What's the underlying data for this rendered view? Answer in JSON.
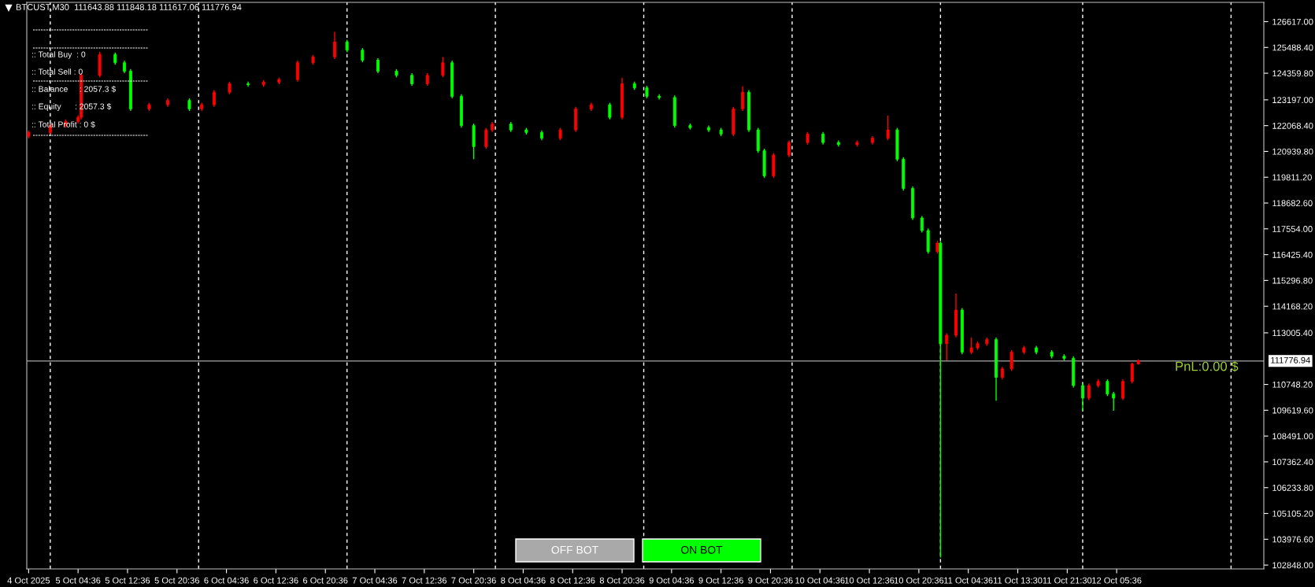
{
  "chart_data": {
    "type": "candlestick",
    "title": "BTCUST,M30  111643.88 111848.18 111617.06 111776.94",
    "categories": [
      "4 Oct 2025",
      null,
      null,
      null,
      null,
      null,
      null,
      null,
      null,
      null,
      null,
      null,
      null,
      null,
      null,
      null,
      "5 Oct 04:36",
      null,
      null,
      null,
      null,
      null,
      null,
      null,
      null,
      null,
      null,
      null,
      null,
      null,
      null,
      null,
      "5 Oct 12:36",
      null,
      null,
      null,
      null,
      null,
      null,
      null,
      null,
      null,
      null,
      null,
      null,
      null,
      null,
      null,
      "5 Oct 20:36",
      null,
      null,
      null,
      null,
      null,
      null,
      null,
      null,
      null,
      null,
      null,
      null,
      null,
      null,
      null,
      "6 Oct 04:36",
      null,
      null,
      null,
      null,
      null,
      null,
      null,
      null,
      null,
      null,
      null,
      null,
      null,
      null,
      null,
      "6 Oct 12:36",
      null,
      null,
      null,
      null,
      null,
      null,
      null,
      null,
      null,
      null,
      null,
      null,
      null,
      null,
      null,
      "6 Oct 20:36",
      null,
      null,
      null,
      null,
      null,
      null,
      null,
      null,
      null,
      null,
      null,
      null,
      null,
      null,
      null,
      "7 Oct 04:36",
      null,
      null,
      null,
      null,
      null,
      null,
      null,
      null,
      null,
      null,
      null,
      null,
      null,
      null,
      null,
      "7 Oct 12:36",
      null,
      null,
      null,
      null,
      null,
      null,
      null,
      null,
      null,
      null,
      null,
      null,
      null,
      null,
      null,
      "7 Oct 20:36",
      null,
      null,
      null,
      null,
      null,
      null,
      null,
      null,
      null,
      null,
      null,
      null,
      null,
      null,
      null,
      "8 Oct 04:36",
      null,
      null,
      null,
      null,
      null,
      null,
      null,
      null,
      null,
      null,
      null,
      null,
      null,
      null,
      null,
      "8 Oct 12:36",
      null,
      null,
      null,
      null,
      null,
      null,
      null,
      null,
      null,
      null,
      null,
      null,
      null,
      null,
      null,
      "8 Oct 20:36",
      null,
      null,
      null,
      null,
      null,
      null,
      null,
      null,
      null,
      null,
      null,
      null,
      null,
      null,
      null,
      "9 Oct 04:36",
      null,
      null,
      null,
      null,
      null,
      null,
      null,
      null,
      null,
      null,
      null,
      null,
      null,
      null,
      null,
      "9 Oct 12:36",
      null,
      null,
      null,
      null,
      null,
      null,
      null,
      null,
      null,
      null,
      null,
      null,
      null,
      null,
      null,
      "9 Oct 20:36",
      null,
      null,
      null,
      null,
      null,
      null,
      null,
      null,
      null,
      null,
      null,
      null,
      null,
      null,
      null,
      "10 Oct 04:36",
      null,
      null,
      null,
      null,
      null,
      null,
      null,
      null,
      null,
      null,
      null,
      null,
      null,
      null,
      null,
      "10 Oct 12:36",
      null,
      null,
      null,
      null,
      null,
      null,
      null,
      null,
      null,
      null,
      null,
      null,
      null,
      null,
      null,
      "10 Oct 20:36",
      null,
      null,
      null,
      null,
      null,
      null,
      null,
      null,
      null,
      null,
      null,
      null,
      null,
      null,
      null,
      "11 Oct 04:36",
      null,
      null,
      null,
      null,
      null,
      null,
      null,
      null,
      null,
      null,
      null,
      null,
      null,
      null,
      null,
      "11 Oct 13:30",
      null,
      null,
      null,
      null,
      null,
      null,
      null,
      null,
      null,
      null,
      null,
      null,
      null,
      null,
      null,
      "11 Oct 21:30",
      null,
      null,
      null,
      null,
      null,
      null,
      null,
      null,
      null,
      null,
      null,
      null,
      null,
      null,
      null,
      "12 Oct 05:36",
      null,
      null,
      null,
      null,
      null,
      null,
      null,
      null,
      null,
      null,
      null,
      null,
      null,
      null,
      null,
      null,
      null,
      null,
      null,
      null,
      null,
      null,
      null,
      null,
      null,
      null,
      null,
      null,
      null,
      null,
      null,
      null,
      null,
      null,
      null,
      null,
      null,
      null,
      null,
      null,
      null,
      null,
      null,
      null,
      null,
      null,
      null
    ],
    "ohlc": [
      [
        121600,
        121860,
        121510,
        121770
      ],
      null,
      null,
      null,
      null,
      null,
      null,
      [
        121770,
        122160,
        121680,
        122070
      ],
      null,
      null,
      null,
      null,
      [
        122070,
        122340,
        121980,
        122250
      ],
      null,
      null,
      null,
      [
        122250,
        122520,
        122160,
        122430
      ],
      [
        122430,
        124360,
        122340,
        124270
      ],
      null,
      null,
      null,
      null,
      null,
      [
        124270,
        125290,
        124180,
        125180
      ],
      null,
      null,
      null,
      null,
      [
        125180,
        125270,
        124730,
        124820
      ],
      null,
      null,
      [
        124820,
        124910,
        124360,
        124450
      ],
      null,
      [
        124450,
        124540,
        122710,
        122800
      ],
      null,
      null,
      null,
      null,
      null,
      [
        122800,
        123070,
        122710,
        122980
      ],
      null,
      null,
      null,
      null,
      null,
      [
        122980,
        123260,
        122890,
        123170
      ],
      null,
      null,
      null,
      null,
      null,
      null,
      [
        123170,
        123260,
        122710,
        122800
      ],
      null,
      null,
      null,
      [
        122800,
        123070,
        122710,
        122980
      ],
      null,
      null,
      null,
      [
        122980,
        123620,
        122890,
        123530
      ],
      null,
      null,
      null,
      null,
      [
        123530,
        123990,
        123440,
        123900
      ],
      null,
      null,
      null,
      null,
      null,
      [
        123900,
        123990,
        123770,
        123860
      ],
      null,
      null,
      null,
      null,
      [
        123860,
        124060,
        123770,
        123970
      ],
      null,
      null,
      null,
      null,
      [
        123970,
        124170,
        123880,
        124080
      ],
      null,
      null,
      null,
      null,
      null,
      [
        124080,
        124910,
        123990,
        124820
      ],
      null,
      null,
      null,
      null,
      [
        124820,
        125160,
        124730,
        125070
      ],
      null,
      null,
      null,
      null,
      null,
      null,
      [
        125070,
        126170,
        124980,
        125730
      ],
      null,
      null,
      null,
      [
        125730,
        125820,
        125280,
        125370
      ],
      null,
      null,
      null,
      null,
      [
        125370,
        125460,
        124840,
        124930
      ],
      null,
      null,
      null,
      null,
      [
        124930,
        125020,
        124360,
        124450
      ],
      null,
      null,
      null,
      null,
      null,
      [
        124450,
        124540,
        124180,
        124270
      ],
      null,
      null,
      null,
      null,
      [
        124270,
        124360,
        123810,
        123900
      ],
      null,
      null,
      null,
      null,
      [
        123900,
        124360,
        123810,
        124270
      ],
      null,
      null,
      null,
      null,
      [
        124270,
        125070,
        124180,
        124820
      ],
      null,
      null,
      [
        124820,
        124910,
        123260,
        123350
      ],
      null,
      null,
      [
        123350,
        123440,
        121980,
        122070
      ],
      null,
      null,
      null,
      [
        122070,
        122160,
        120600,
        121150
      ],
      null,
      null,
      null,
      [
        121150,
        121970,
        121060,
        121880
      ],
      null,
      [
        121880,
        122230,
        121790,
        122140
      ],
      null,
      null,
      null,
      null,
      null,
      [
        122140,
        122230,
        121790,
        121880
      ],
      null,
      null,
      null,
      null,
      [
        121880,
        121970,
        121680,
        121770
      ],
      null,
      null,
      null,
      null,
      [
        121770,
        121860,
        121430,
        121520
      ],
      null,
      null,
      null,
      null,
      null,
      [
        121520,
        121970,
        121430,
        121880
      ],
      null,
      null,
      null,
      null,
      [
        121880,
        122890,
        121790,
        122800
      ],
      null,
      null,
      null,
      null,
      [
        122800,
        123070,
        122710,
        122980
      ],
      null,
      null,
      null,
      null,
      null,
      [
        122980,
        123070,
        122340,
        122430
      ],
      null,
      null,
      null,
      [
        122430,
        124160,
        122340,
        123900
      ],
      null,
      null,
      null,
      [
        123900,
        123990,
        123630,
        123720
      ],
      null,
      null,
      null,
      [
        123720,
        123810,
        123260,
        123350
      ],
      null,
      null,
      null,
      [
        123350,
        123440,
        123210,
        123300
      ],
      null,
      null,
      null,
      null,
      [
        123300,
        123390,
        121980,
        122070
      ],
      null,
      null,
      null,
      null,
      [
        122070,
        122160,
        121900,
        121980
      ],
      null,
      null,
      null,
      null,
      null,
      [
        121980,
        122070,
        121790,
        121880
      ],
      null,
      null,
      null,
      [
        121880,
        121970,
        121610,
        121700
      ],
      null,
      null,
      null,
      [
        121700,
        122890,
        121610,
        122800
      ],
      null,
      null,
      [
        122800,
        123790,
        122710,
        123530
      ],
      null,
      [
        123530,
        123620,
        121790,
        121880
      ],
      null,
      null,
      [
        121880,
        121970,
        120880,
        120970
      ],
      null,
      [
        120970,
        121060,
        119780,
        119870
      ],
      null,
      null,
      [
        119870,
        120870,
        119780,
        120780
      ],
      null,
      null,
      null,
      null,
      [
        120780,
        121420,
        120690,
        121330
      ],
      null,
      null,
      null,
      null,
      null,
      [
        121330,
        121790,
        121240,
        121700
      ],
      null,
      null,
      null,
      null,
      [
        121700,
        121790,
        121240,
        121330
      ],
      null,
      null,
      null,
      null,
      [
        121330,
        121420,
        121150,
        121240
      ],
      null,
      null,
      null,
      null,
      null,
      [
        121240,
        121420,
        121150,
        121330
      ],
      null,
      null,
      null,
      null,
      [
        121330,
        121610,
        121240,
        121520
      ],
      null,
      null,
      null,
      null,
      [
        121520,
        122510,
        121430,
        121880
      ],
      null,
      null,
      [
        121880,
        121970,
        120510,
        120600
      ],
      null,
      [
        120600,
        120690,
        119230,
        119320
      ],
      null,
      null,
      [
        119320,
        119410,
        117940,
        118030
      ],
      null,
      null,
      [
        118030,
        118120,
        117390,
        117480
      ],
      null,
      [
        117480,
        117570,
        116470,
        116560
      ],
      null,
      null,
      [
        116560,
        117020,
        116470,
        116930
      ],
      [
        116930,
        117020,
        103180,
        112530
      ],
      null,
      [
        112530,
        112990,
        111800,
        112900
      ],
      null,
      null,
      [
        112900,
        114730,
        112810,
        114000
      ],
      null,
      [
        114000,
        114090,
        112070,
        112160
      ],
      null,
      null,
      [
        112160,
        112800,
        112070,
        112350
      ],
      null,
      [
        112350,
        112620,
        112260,
        112530
      ],
      null,
      null,
      [
        112530,
        112800,
        112440,
        112710
      ],
      null,
      null,
      [
        112710,
        112800,
        110040,
        111060
      ],
      null,
      [
        111060,
        111520,
        110970,
        111430
      ],
      null,
      null,
      [
        111430,
        112250,
        111340,
        112160
      ],
      null,
      null,
      null,
      [
        112160,
        112440,
        112070,
        112350
      ],
      null,
      null,
      null,
      [
        112350,
        112440,
        112070,
        112160
      ],
      null,
      null,
      null,
      null,
      [
        112160,
        112250,
        111890,
        111980
      ],
      null,
      null,
      null,
      [
        111980,
        112070,
        111800,
        111890
      ],
      null,
      null,
      [
        111890,
        111980,
        110610,
        110700
      ],
      null,
      null,
      [
        110700,
        110790,
        109600,
        110150
      ],
      null,
      [
        110150,
        110790,
        110060,
        110700
      ],
      null,
      null,
      [
        110700,
        110970,
        110610,
        110880
      ],
      null,
      null,
      [
        110880,
        110970,
        110240,
        110330
      ],
      null,
      [
        110330,
        110420,
        109600,
        110150
      ],
      null,
      null,
      [
        110150,
        110970,
        110060,
        110880
      ],
      null,
      null,
      [
        110880,
        111700,
        110790,
        111640
      ],
      null,
      [
        111643.88,
        111848.18,
        111617.06,
        111776.94
      ],
      null,
      null,
      null,
      null,
      null,
      null,
      null,
      null,
      null,
      null,
      null,
      null,
      null,
      null,
      null,
      null,
      null,
      null,
      null,
      null,
      null,
      null,
      null,
      null,
      null,
      null,
      null,
      null,
      null,
      null,
      null,
      null,
      null,
      null,
      null,
      null,
      null,
      null,
      null,
      null
    ],
    "colors": [
      "#ff0000",
      null,
      null,
      null,
      null,
      null,
      null,
      "#ff0000",
      null,
      null,
      null,
      null,
      "#ff0000",
      null,
      null,
      null,
      "#ff0000",
      "#ff0000",
      null,
      null,
      null,
      null,
      null,
      "#ff0000",
      null,
      null,
      null,
      null,
      "#00ff00",
      null,
      null,
      "#00ff00",
      null,
      "#00ff00",
      null,
      null,
      null,
      null,
      null,
      "#ff0000",
      null,
      null,
      null,
      null,
      null,
      "#ff0000",
      null,
      null,
      null,
      null,
      null,
      null,
      "#00ff00",
      null,
      null,
      null,
      "#ff0000",
      null,
      null,
      null,
      "#ff0000",
      null,
      null,
      null,
      null,
      "#ff0000",
      null,
      null,
      null,
      null,
      null,
      "#00ff00",
      null,
      null,
      null,
      null,
      "#ff0000",
      null,
      null,
      null,
      null,
      "#ff0000",
      null,
      null,
      null,
      null,
      null,
      "#ff0000",
      null,
      null,
      null,
      null,
      "#ff0000",
      null,
      null,
      null,
      null,
      null,
      null,
      "#ff0000",
      null,
      null,
      null,
      "#00ff00",
      null,
      null,
      null,
      null,
      "#00ff00",
      null,
      null,
      null,
      null,
      "#00ff00",
      null,
      null,
      null,
      null,
      null,
      "#00ff00",
      null,
      null,
      null,
      null,
      "#00ff00",
      null,
      null,
      null,
      null,
      "#ff0000",
      null,
      null,
      null,
      null,
      "#ff0000",
      null,
      null,
      "#00ff00",
      null,
      null,
      "#00ff00",
      null,
      null,
      null,
      "#00ff00",
      null,
      null,
      null,
      "#ff0000",
      null,
      "#ff0000",
      null,
      null,
      null,
      null,
      null,
      "#00ff00",
      null,
      null,
      null,
      null,
      "#00ff00",
      null,
      null,
      null,
      null,
      "#00ff00",
      null,
      null,
      null,
      null,
      null,
      "#ff0000",
      null,
      null,
      null,
      null,
      "#ff0000",
      null,
      null,
      null,
      null,
      "#ff0000",
      null,
      null,
      null,
      null,
      null,
      "#00ff00",
      null,
      null,
      null,
      "#ff0000",
      null,
      null,
      null,
      "#00ff00",
      null,
      null,
      null,
      "#00ff00",
      null,
      null,
      null,
      "#00ff00",
      null,
      null,
      null,
      null,
      "#00ff00",
      null,
      null,
      null,
      null,
      "#00ff00",
      null,
      null,
      null,
      null,
      null,
      "#00ff00",
      null,
      null,
      null,
      "#00ff00",
      null,
      null,
      null,
      "#ff0000",
      null,
      null,
      "#ff0000",
      null,
      "#00ff00",
      null,
      null,
      "#00ff00",
      null,
      "#00ff00",
      null,
      null,
      "#ff0000",
      null,
      null,
      null,
      null,
      "#ff0000",
      null,
      null,
      null,
      null,
      null,
      "#ff0000",
      null,
      null,
      null,
      null,
      "#00ff00",
      null,
      null,
      null,
      null,
      "#00ff00",
      null,
      null,
      null,
      null,
      null,
      "#ff0000",
      null,
      null,
      null,
      null,
      "#ff0000",
      null,
      null,
      null,
      null,
      "#ff0000",
      null,
      null,
      "#00ff00",
      null,
      "#00ff00",
      null,
      null,
      "#00ff00",
      null,
      null,
      "#00ff00",
      null,
      "#00ff00",
      null,
      null,
      "#ff0000",
      "#00ff00",
      null,
      "#ff0000",
      null,
      null,
      "#ff0000",
      null,
      "#00ff00",
      null,
      null,
      "#ff0000",
      null,
      "#ff0000",
      null,
      null,
      "#ff0000",
      null,
      null,
      "#00ff00",
      null,
      "#ff0000",
      null,
      null,
      "#ff0000",
      null,
      null,
      null,
      "#ff0000",
      null,
      null,
      null,
      "#00ff00",
      null,
      null,
      null,
      null,
      "#00ff00",
      null,
      null,
      null,
      "#00ff00",
      null,
      null,
      "#00ff00",
      null,
      null,
      "#00ff00",
      null,
      "#ff0000",
      null,
      null,
      "#ff0000",
      null,
      null,
      "#00ff00",
      null,
      "#00ff00",
      null,
      null,
      "#ff0000",
      null,
      null,
      "#ff0000",
      null,
      "#ff0000",
      null,
      null,
      null,
      null,
      null,
      null,
      null,
      null,
      null,
      null,
      null,
      null,
      null,
      null,
      null,
      null,
      null,
      null,
      null,
      null,
      null,
      null,
      null,
      null,
      null,
      null,
      null,
      null,
      null,
      null,
      null,
      null,
      null,
      null,
      null,
      null,
      null,
      null,
      null,
      null
    ],
    "ylim": [
      102680,
      127460
    ],
    "yticks": [
      {
        "value": 126617,
        "label": "126617.00"
      },
      {
        "value": 125488.4,
        "label": "125488.40"
      },
      {
        "value": 124359.8,
        "label": "124359.80"
      },
      {
        "value": 123197,
        "label": "123197.00"
      },
      {
        "value": 122068.4,
        "label": "122068.40"
      },
      {
        "value": 120939.8,
        "label": "120939.80"
      },
      {
        "value": 119811.2,
        "label": "119811.20"
      },
      {
        "value": 118682.6,
        "label": "118682.60"
      },
      {
        "value": 117554,
        "label": "117554.00"
      },
      {
        "value": 116425.4,
        "label": "116425.40"
      },
      {
        "value": 115296.8,
        "label": "115296.80"
      },
      {
        "value": 114168.2,
        "label": "114168.20"
      },
      {
        "value": 113005.4,
        "label": "113005.40"
      },
      {
        "value": 110748.2,
        "label": "110748.20"
      },
      {
        "value": 109619.6,
        "label": "109619.60"
      },
      {
        "value": 108491,
        "label": "108491.00"
      },
      {
        "value": 107362.4,
        "label": "107362.40"
      },
      {
        "value": 106233.8,
        "label": "106233.80"
      },
      {
        "value": 105105.2,
        "label": "105105.20"
      },
      {
        "value": 103976.6,
        "label": "103976.60"
      },
      {
        "value": 102848,
        "label": "102848.00"
      }
    ],
    "ref_lines": [
      {
        "axis": "y",
        "value": 111776.94,
        "label": "111776.94",
        "color": "#8c8c8c",
        "line_style": "solid"
      }
    ],
    "annotations": [
      ":: Total Buy  : 0",
      ":: Total Sell : 0",
      ":: Balance     : 2057.3 $",
      ":: Equity      : 2057.3 $",
      ":: Total Profit : 0 $",
      "PnL:0.00 $",
      "OFF BOT",
      "ON BOT"
    ],
    "grid": false,
    "legend": false
  }
}
